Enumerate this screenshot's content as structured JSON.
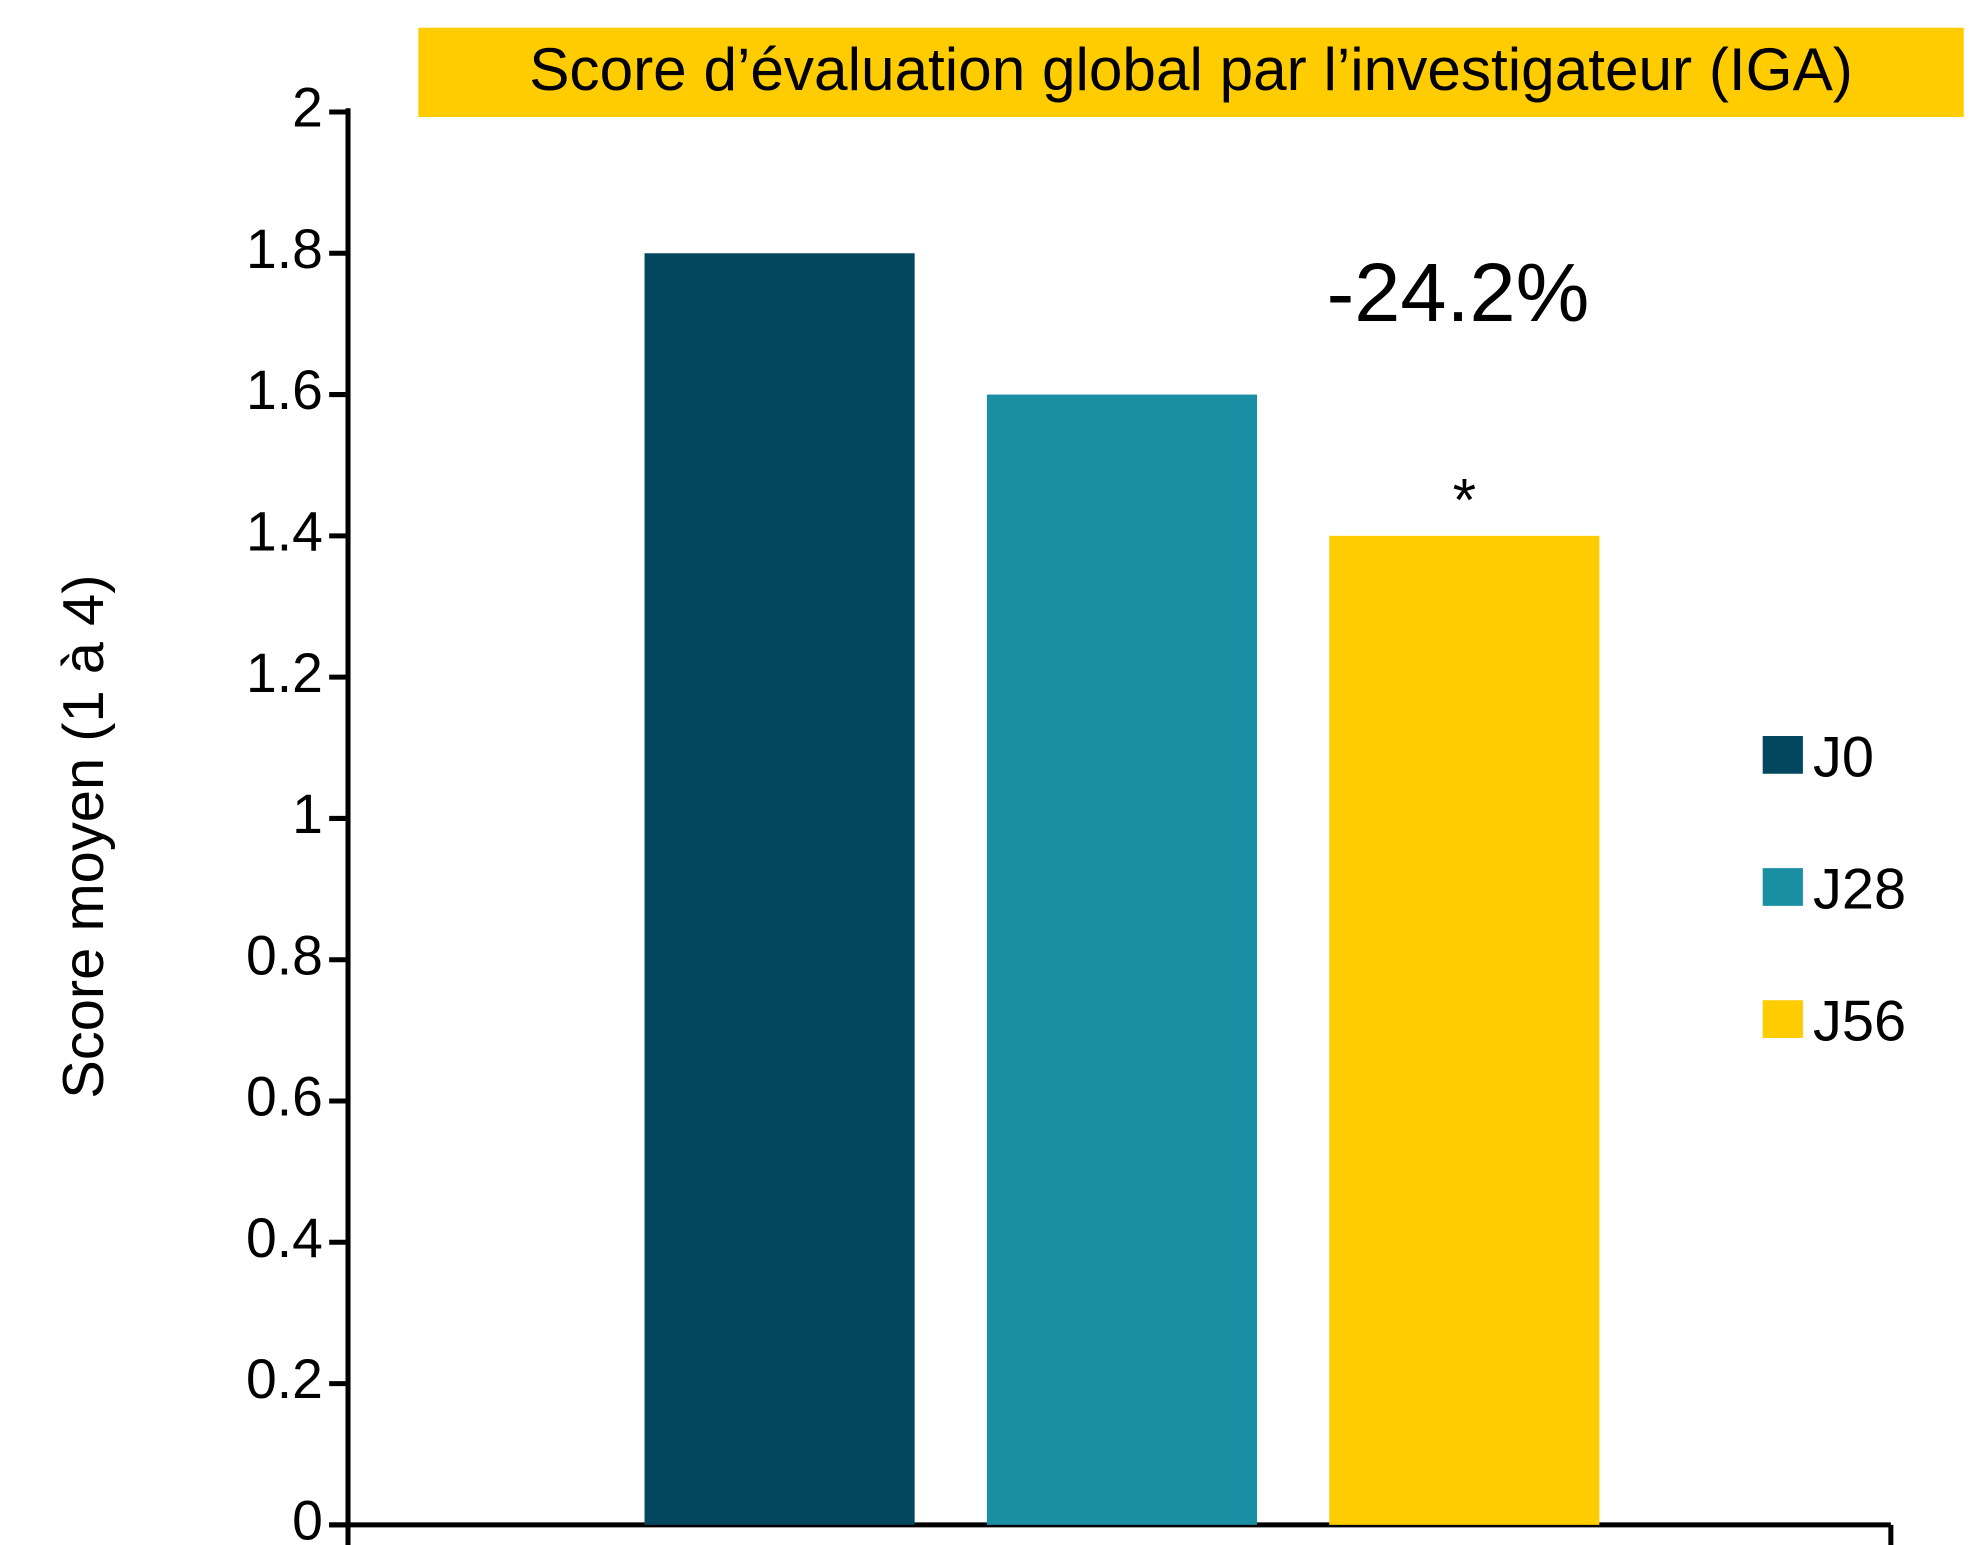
{
  "chart_data": {
    "type": "bar",
    "title": "Score d’évaluation global par l’investigateur (IGA)",
    "y_label": "Score moyen (1 à 4)",
    "categories": [
      null
    ],
    "series": [
      {
        "name": "J0",
        "color": "#03475F",
        "values": [
          1.8
        ]
      },
      {
        "name": "J28",
        "color": "#1A8FA3",
        "values": [
          1.6
        ]
      },
      {
        "name": "J56",
        "color": "#FFCC00",
        "values": [
          1.4
        ]
      }
    ],
    "annotations": [
      "-24.2%",
      "*"
    ],
    "ylim": [
      0,
      2
    ],
    "yticks": [
      0,
      0.2,
      0.4,
      0.6,
      0.8,
      1,
      1.2,
      1.4,
      1.6,
      1.8,
      2
    ],
    "legend": "right",
    "title_background": "#FFCC00",
    "annotation_color": "#FF0000"
  }
}
